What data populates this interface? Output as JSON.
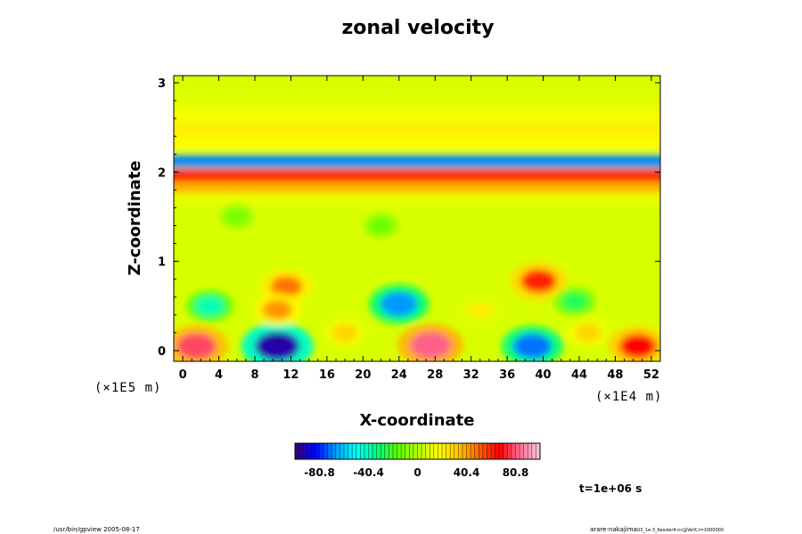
{
  "chart_data": {
    "type": "heatmap",
    "title": "zonal velocity",
    "xlabel": "X-coordinate",
    "ylabel": "Z-coordinate",
    "x_scale_label": "(×1E4 m)",
    "z_scale_label": "(×1E5 m)",
    "xlim": [
      -1,
      53
    ],
    "ylim": [
      -0.12,
      3.08
    ],
    "x_ticks": [
      "0",
      "4",
      "8",
      "12",
      "16",
      "20",
      "24",
      "28",
      "32",
      "36",
      "40",
      "44",
      "48",
      "52"
    ],
    "x_tick_values": [
      0,
      4,
      8,
      12,
      16,
      20,
      24,
      28,
      32,
      36,
      40,
      44,
      48,
      52
    ],
    "y_ticks": [
      "0",
      "1",
      "2",
      "3"
    ],
    "y_tick_values": [
      0,
      1,
      2,
      3
    ],
    "value_range": [
      -101,
      101
    ],
    "colorbar_ticks": [
      "-80.8",
      "-40.4",
      "0",
      "40.4",
      "80.8"
    ],
    "colorbar_tick_values": [
      -80.8,
      -40.4,
      0,
      40.4,
      80.8
    ],
    "colormap": [
      "#3c0078",
      "#0000ff",
      "#00a0ff",
      "#00ffff",
      "#00ff80",
      "#5aff00",
      "#b4ff00",
      "#ffff00",
      "#ffc800",
      "#ff6400",
      "#ff0000",
      "#ff6e9a",
      "#ffc8d8"
    ],
    "bands": [
      {
        "z": 2.12,
        "value": -70
      },
      {
        "z": 1.96,
        "value": 62
      },
      {
        "z": 1.82,
        "value": 38
      },
      {
        "z": 2.33,
        "value": 18
      },
      {
        "z": 2.48,
        "value": 22
      },
      {
        "z": 2.64,
        "value": 16
      },
      {
        "z": 2.78,
        "value": 10
      },
      {
        "z": 1.7,
        "value": 12
      }
    ],
    "blobs": [
      {
        "x": 10.5,
        "z": 0.05,
        "value": -95
      },
      {
        "x": 27.5,
        "z": 0.06,
        "value": 82
      },
      {
        "x": 1.5,
        "z": 0.05,
        "value": 78
      },
      {
        "x": 50.5,
        "z": 0.05,
        "value": 68
      },
      {
        "x": 38.8,
        "z": 0.05,
        "value": -72
      },
      {
        "x": 24.0,
        "z": 0.52,
        "value": -68
      },
      {
        "x": 39.5,
        "z": 0.78,
        "value": 62
      },
      {
        "x": 11.5,
        "z": 0.72,
        "value": 48
      },
      {
        "x": 10.5,
        "z": 0.46,
        "value": 42
      },
      {
        "x": 3.0,
        "z": 0.5,
        "value": -40
      },
      {
        "x": 43.5,
        "z": 0.55,
        "value": -28
      },
      {
        "x": 18.0,
        "z": 0.2,
        "value": 30
      },
      {
        "x": 45.0,
        "z": 0.2,
        "value": 30
      },
      {
        "x": 33.0,
        "z": 0.45,
        "value": 22
      },
      {
        "x": 22.0,
        "z": 1.4,
        "value": -14
      },
      {
        "x": 6.0,
        "z": 1.5,
        "value": -12
      }
    ]
  },
  "annotations": {
    "time": "t=1e+06 s",
    "footer_left": "/usr/bin/gpview 2005-08-17",
    "footer_right_main": "arare-nakajima",
    "footer_right_sub": "03_1e-3_Kessler4.nc@VelX,t=1000000"
  }
}
